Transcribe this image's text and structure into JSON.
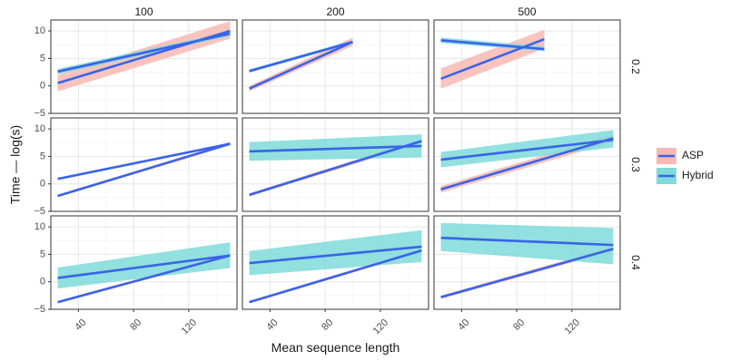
{
  "chart_data": {
    "type": "line",
    "facet_layout": "grid",
    "xlabel": "Mean sequence length",
    "ylabel": "Time — log(s)",
    "col_labels": [
      "100",
      "200",
      "500"
    ],
    "row_labels": [
      "0.2",
      "0.3",
      "0.4"
    ],
    "xlim": [
      20,
      155
    ],
    "ylim": [
      -5,
      12
    ],
    "xticks": [
      40,
      80,
      120
    ],
    "yticks": [
      -5,
      0,
      5,
      10
    ],
    "grid": true,
    "legend": {
      "position": "right",
      "entries": [
        {
          "label": "ASP",
          "line_color": "#3a63e8",
          "fill_color": "#f8b8b3"
        },
        {
          "label": "Hybrid",
          "line_color": "#3a63e8",
          "fill_color": "#7fdad9"
        }
      ]
    },
    "colors": {
      "line": "#3a63e8",
      "asp_band": "#f8b8b3",
      "hybrid_band": "#7fdad9",
      "panel_border": "#333333",
      "strip_bg": "#ffffff",
      "grid_major": "#e6e6e6",
      "grid_minor": "#f2f2f2"
    },
    "panels": [
      {
        "row": 0,
        "col": 0,
        "series": [
          {
            "name": "ASP",
            "x": [
              25,
              150
            ],
            "y": [
              0.5,
              10
            ],
            "band": [
              [
                -1.0,
                2.0
              ],
              [
                8.6,
                11.8
              ]
            ]
          },
          {
            "name": "Hybrid",
            "x": [
              25,
              150
            ],
            "y": [
              2.6,
              9.5
            ],
            "band": [
              [
                2.1,
                3.1
              ],
              [
                9.1,
                9.9
              ]
            ]
          }
        ]
      },
      {
        "row": 0,
        "col": 1,
        "series": [
          {
            "name": "ASP",
            "x": [
              25,
              100
            ],
            "y": [
              -0.5,
              8.0
            ],
            "band": [
              [
                -1.0,
                0.0
              ],
              [
                7.3,
                8.8
              ]
            ]
          },
          {
            "name": "Hybrid",
            "x": [
              25,
              100
            ],
            "y": [
              2.7,
              8.0
            ],
            "band": [
              [
                2.4,
                3.0
              ],
              [
                7.7,
                8.3
              ]
            ]
          }
        ]
      },
      {
        "row": 0,
        "col": 2,
        "series": [
          {
            "name": "ASP",
            "x": [
              25,
              100
            ],
            "y": [
              1.3,
              8.5
            ],
            "band": [
              [
                -0.5,
                3.2
              ],
              [
                6.8,
                10.2
              ]
            ]
          },
          {
            "name": "Hybrid",
            "x": [
              25,
              100
            ],
            "y": [
              8.3,
              6.7
            ],
            "band": [
              [
                7.8,
                8.8
              ],
              [
                6.3,
                7.2
              ]
            ]
          }
        ]
      },
      {
        "row": 1,
        "col": 0,
        "series": [
          {
            "name": "ASP",
            "x": [
              25,
              150
            ],
            "y": [
              -2.2,
              7.3
            ],
            "band": [
              [
                -2.4,
                -2.0
              ],
              [
                7.0,
                7.6
              ]
            ]
          },
          {
            "name": "Hybrid",
            "x": [
              25,
              150
            ],
            "y": [
              0.9,
              7.3
            ],
            "band": [
              [
                0.7,
                1.1
              ],
              [
                7.1,
                7.5
              ]
            ]
          }
        ]
      },
      {
        "row": 1,
        "col": 1,
        "series": [
          {
            "name": "ASP",
            "x": [
              25,
              150
            ],
            "y": [
              -2.0,
              7.8
            ],
            "band": [
              [
                -2.3,
                -1.7
              ],
              [
                7.4,
                8.2
              ]
            ]
          },
          {
            "name": "Hybrid",
            "x": [
              25,
              150
            ],
            "y": [
              5.9,
              6.9
            ],
            "band": [
              [
                4.2,
                7.6
              ],
              [
                4.8,
                9.0
              ]
            ]
          }
        ]
      },
      {
        "row": 1,
        "col": 2,
        "series": [
          {
            "name": "ASP",
            "x": [
              25,
              150
            ],
            "y": [
              -1.0,
              8.3
            ],
            "band": [
              [
                -1.6,
                -0.4
              ],
              [
                7.6,
                9.0
              ]
            ]
          },
          {
            "name": "Hybrid",
            "x": [
              25,
              150
            ],
            "y": [
              4.4,
              8.0
            ],
            "band": [
              [
                3.0,
                5.8
              ],
              [
                6.6,
                9.8
              ]
            ]
          }
        ]
      },
      {
        "row": 2,
        "col": 0,
        "series": [
          {
            "name": "ASP",
            "x": [
              25,
              150
            ],
            "y": [
              -3.7,
              4.8
            ],
            "band": [
              [
                -3.9,
                -3.5
              ],
              [
                4.5,
                5.1
              ]
            ]
          },
          {
            "name": "Hybrid",
            "x": [
              25,
              150
            ],
            "y": [
              0.7,
              4.8
            ],
            "band": [
              [
                -1.2,
                2.6
              ],
              [
                2.5,
                7.2
              ]
            ]
          }
        ]
      },
      {
        "row": 2,
        "col": 1,
        "series": [
          {
            "name": "ASP",
            "x": [
              25,
              150
            ],
            "y": [
              -3.7,
              5.7
            ],
            "band": [
              [
                -3.9,
                -3.5
              ],
              [
                5.4,
                6.0
              ]
            ]
          },
          {
            "name": "Hybrid",
            "x": [
              25,
              150
            ],
            "y": [
              3.4,
              6.4
            ],
            "band": [
              [
                1.2,
                5.6
              ],
              [
                3.6,
                9.4
              ]
            ]
          }
        ]
      },
      {
        "row": 2,
        "col": 2,
        "series": [
          {
            "name": "ASP",
            "x": [
              25,
              150
            ],
            "y": [
              -2.8,
              6.0
            ],
            "band": [
              [
                -3.1,
                -2.5
              ],
              [
                5.6,
                6.4
              ]
            ]
          },
          {
            "name": "Hybrid",
            "x": [
              25,
              150
            ],
            "y": [
              8.0,
              6.7
            ],
            "band": [
              [
                5.6,
                10.7
              ],
              [
                3.2,
                9.8
              ]
            ]
          }
        ]
      }
    ]
  }
}
